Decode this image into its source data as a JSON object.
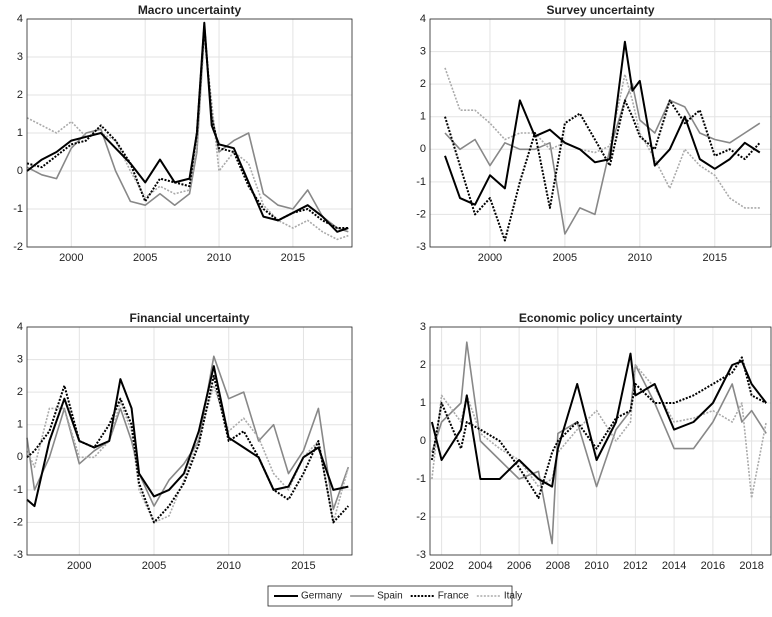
{
  "chart_data": [
    {
      "type": "line",
      "title": "Macro uncertainty",
      "x": [
        1997,
        1998,
        1999,
        2000,
        2001,
        2002,
        2003,
        2004,
        2005,
        2006,
        2007,
        2008,
        2008.5,
        2009,
        2009.5,
        2010,
        2011,
        2012,
        2013,
        2014,
        2015,
        2016,
        2017,
        2018,
        2018.75
      ],
      "xlim": [
        1997,
        2019
      ],
      "xticks": [
        2000,
        2005,
        2010,
        2015
      ],
      "ylim": [
        -2,
        4
      ],
      "yticks": [
        -2,
        -1,
        0,
        1,
        2,
        3,
        4
      ],
      "grid": true,
      "series": [
        {
          "name": "Germany",
          "color": "#000000",
          "line_style": "solid",
          "values": [
            0,
            0.3,
            0.5,
            0.8,
            0.9,
            1.0,
            0.6,
            0.2,
            -0.3,
            0.3,
            -0.3,
            -0.2,
            1.0,
            3.9,
            1.2,
            0.7,
            0.6,
            -0.3,
            -1.2,
            -1.3,
            -1.1,
            -0.9,
            -1.2,
            -1.6,
            -1.5
          ]
        },
        {
          "name": "Spain",
          "color": "#888888",
          "line_style": "solid",
          "values": [
            0.1,
            -0.1,
            -0.2,
            0.6,
            1.0,
            1.1,
            0.0,
            -0.8,
            -0.9,
            -0.6,
            -0.9,
            -0.6,
            0.5,
            3.7,
            1.5,
            0.5,
            0.8,
            1.0,
            -0.6,
            -0.9,
            -1.0,
            -0.5,
            -1.2,
            -1.5,
            -1.6
          ]
        },
        {
          "name": "France",
          "color": "#000000",
          "line_style": "dotted",
          "values": [
            0.2,
            0.1,
            0.4,
            0.7,
            0.8,
            1.2,
            0.8,
            0.2,
            -0.8,
            -0.2,
            -0.3,
            -0.4,
            1.0,
            3.8,
            1.4,
            0.6,
            0.5,
            -0.4,
            -1.0,
            -1.3,
            -1.1,
            -1.0,
            -1.3,
            -1.5,
            -1.5
          ]
        },
        {
          "name": "Italy",
          "color": "#aaaaaa",
          "line_style": "dotted",
          "values": [
            1.4,
            1.2,
            1.0,
            1.3,
            0.9,
            1.0,
            0.8,
            0.0,
            -0.7,
            -0.4,
            -0.6,
            -0.5,
            0.6,
            3.5,
            1.8,
            0.0,
            0.5,
            0.2,
            -0.9,
            -1.3,
            -1.5,
            -1.3,
            -1.6,
            -1.8,
            -1.7
          ]
        }
      ]
    },
    {
      "type": "line",
      "title": "Survey uncertainty",
      "x": [
        1997,
        1998,
        1999,
        2000,
        2001,
        2002,
        2003,
        2004,
        2005,
        2006,
        2007,
        2008,
        2009,
        2009.5,
        2010,
        2011,
        2012,
        2013,
        2014,
        2015,
        2016,
        2017,
        2018
      ],
      "xlim": [
        1996,
        2018.75
      ],
      "xticks": [
        2000,
        2005,
        2010,
        2015
      ],
      "ylim": [
        -3,
        4
      ],
      "yticks": [
        -3,
        -2,
        -1,
        0,
        1,
        2,
        3,
        4
      ],
      "grid": true,
      "series": [
        {
          "values": [
            -0.2,
            -1.5,
            -1.7,
            -0.8,
            -1.2,
            1.5,
            0.4,
            0.6,
            0.2,
            0.0,
            -0.4,
            -0.3,
            3.3,
            1.8,
            2.1,
            -0.5,
            0.0,
            1.0,
            -0.3,
            -0.6,
            -0.3,
            0.2,
            -0.1
          ]
        },
        {
          "values": [
            0.5,
            0.0,
            0.3,
            -0.5,
            0.2,
            0.0,
            0.0,
            0.2,
            -2.6,
            -1.8,
            -2.0,
            0.0,
            1.5,
            2.0,
            0.9,
            0.5,
            1.5,
            1.3,
            0.5,
            0.3,
            0.2,
            0.5,
            0.8
          ]
        },
        {
          "values": [
            1.0,
            -0.5,
            -2.0,
            -1.5,
            -2.8,
            -1.0,
            0.5,
            -1.8,
            0.8,
            1.1,
            0.3,
            -0.5,
            1.5,
            1.0,
            0.4,
            0.0,
            1.5,
            0.8,
            1.2,
            -0.2,
            0.0,
            -0.3,
            0.2
          ]
        },
        {
          "values": [
            2.5,
            1.2,
            1.2,
            0.8,
            0.3,
            0.5,
            0.5,
            0.0,
            0.2,
            0.0,
            -0.1,
            0.1,
            2.3,
            1.5,
            0.5,
            -0.3,
            -1.2,
            0.0,
            -0.5,
            -0.8,
            -1.5,
            -1.8,
            -1.8
          ]
        }
      ]
    },
    {
      "type": "line",
      "title": "Financial uncertainty",
      "x": [
        1996.5,
        1997,
        1998,
        1999,
        2000,
        2001,
        2002,
        2002.75,
        2003.5,
        2004,
        2005,
        2006,
        2007,
        2008,
        2009,
        2010,
        2011,
        2012,
        2013,
        2014,
        2015,
        2016,
        2017,
        2018
      ],
      "xlim": [
        1996.5,
        2018.25
      ],
      "xticks": [
        2000,
        2005,
        2010,
        2015
      ],
      "ylim": [
        -3,
        4
      ],
      "yticks": [
        -3,
        -2,
        -1,
        0,
        1,
        2,
        3,
        4
      ],
      "grid": true,
      "series": [
        {
          "values": [
            -1.3,
            -1.5,
            0.5,
            1.8,
            0.5,
            0.3,
            0.5,
            2.4,
            1.5,
            -0.5,
            -1.2,
            -1.0,
            -0.5,
            0.8,
            2.8,
            0.6,
            0.3,
            0.0,
            -1.0,
            -0.9,
            0.0,
            0.3,
            -1.0,
            -0.9
          ]
        },
        {
          "values": [
            0.6,
            -1.0,
            0.0,
            1.5,
            -0.2,
            0.2,
            0.5,
            1.5,
            0.5,
            -0.5,
            -1.5,
            -0.7,
            -0.2,
            0.5,
            3.1,
            1.8,
            2.0,
            0.5,
            1.0,
            -0.5,
            0.2,
            1.5,
            -1.6,
            -0.3
          ]
        },
        {
          "values": [
            0.0,
            0.2,
            0.8,
            2.2,
            0.5,
            0.3,
            1.0,
            1.8,
            1.0,
            -0.8,
            -2.0,
            -1.5,
            -0.8,
            0.4,
            2.5,
            0.5,
            0.8,
            0.0,
            -1.0,
            -1.3,
            -0.5,
            0.5,
            -2.0,
            -1.5
          ]
        },
        {
          "values": [
            0.2,
            -0.3,
            1.5,
            1.5,
            0.0,
            0.0,
            0.5,
            1.7,
            0.8,
            -1.0,
            -2.0,
            -1.8,
            -0.7,
            0.6,
            2.2,
            0.8,
            1.2,
            0.6,
            -0.5,
            -1.0,
            0.0,
            0.5,
            -2.0,
            -0.3
          ]
        }
      ]
    },
    {
      "type": "line",
      "title": "Economic policy uncertainty",
      "x": [
        2001.5,
        2002,
        2003,
        2003.3,
        2004,
        2005,
        2006,
        2007,
        2007.7,
        2008,
        2009,
        2010,
        2011,
        2011.75,
        2012,
        2013,
        2014,
        2015,
        2016,
        2017,
        2017.5,
        2018,
        2018.75
      ],
      "xlim": [
        2001.4,
        2019
      ],
      "xticks": [
        2002,
        2004,
        2006,
        2008,
        2010,
        2012,
        2014,
        2016,
        2018
      ],
      "ylim": [
        -3,
        3
      ],
      "yticks": [
        -3,
        -2,
        -1,
        0,
        1,
        2,
        3
      ],
      "grid": true,
      "series": [
        {
          "values": [
            0.5,
            -0.5,
            0.3,
            1.2,
            -1.0,
            -1.0,
            -0.5,
            -1.0,
            -1.2,
            -0.2,
            1.5,
            -0.5,
            0.5,
            2.3,
            1.2,
            1.5,
            0.3,
            0.5,
            1.0,
            2.0,
            2.1,
            1.5,
            1.0
          ]
        },
        {
          "values": [
            -0.3,
            0.5,
            1.0,
            2.6,
            0.0,
            -0.5,
            -1.0,
            -0.8,
            -2.7,
            0.2,
            0.5,
            -1.2,
            0.3,
            0.8,
            2.0,
            1.0,
            -0.2,
            -0.2,
            0.5,
            1.5,
            0.5,
            0.8,
            0.2
          ]
        },
        {
          "values": [
            -0.5,
            1.0,
            -0.2,
            0.5,
            0.3,
            0.0,
            -0.7,
            -1.5,
            -0.3,
            0.0,
            0.5,
            -0.2,
            0.6,
            0.8,
            1.5,
            1.0,
            1.0,
            1.2,
            1.5,
            1.8,
            2.2,
            1.2,
            1.0
          ]
        },
        {
          "values": [
            -1.0,
            1.2,
            0.5,
            1.2,
            0.2,
            -0.2,
            -0.5,
            -1.2,
            -1.0,
            -0.3,
            0.3,
            0.8,
            0.0,
            0.5,
            2.0,
            1.4,
            0.5,
            0.6,
            0.8,
            0.5,
            1.0,
            -1.5,
            0.5
          ]
        }
      ]
    }
  ]
}
